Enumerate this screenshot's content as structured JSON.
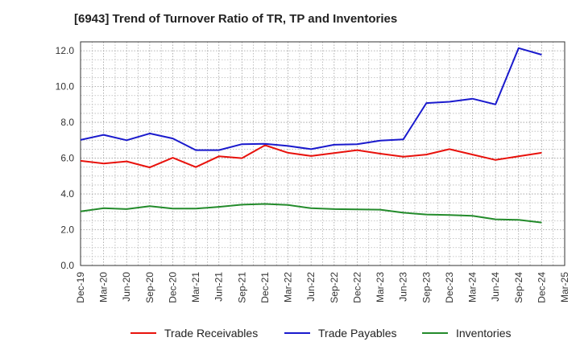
{
  "chart_data": {
    "type": "line",
    "title": "[6943]  Trend of Turnover Ratio of TR, TP and Inventories",
    "xlabel": "",
    "ylabel": "",
    "ylim": [
      0,
      12.5
    ],
    "yticks": [
      "0.0",
      "2.0",
      "4.0",
      "6.0",
      "8.0",
      "10.0",
      "12.0"
    ],
    "grid": true,
    "legend_position": "bottom",
    "x": [
      "Dec-19",
      "Mar-20",
      "Jun-20",
      "Sep-20",
      "Dec-20",
      "Mar-21",
      "Jun-21",
      "Sep-21",
      "Dec-21",
      "Mar-22",
      "Jun-22",
      "Sep-22",
      "Dec-22",
      "Mar-23",
      "Jun-23",
      "Sep-23",
      "Dec-23",
      "Mar-24",
      "Jun-24",
      "Sep-24",
      "Dec-24",
      "Mar-25"
    ],
    "series": [
      {
        "name": "Trade Receivables",
        "color": "#e8120c",
        "values": [
          5.85,
          5.7,
          5.82,
          5.48,
          6.02,
          5.5,
          6.1,
          6.0,
          6.72,
          6.3,
          6.12,
          6.28,
          6.45,
          6.25,
          6.08,
          6.2,
          6.5,
          6.2,
          5.9,
          6.1,
          6.3,
          null
        ]
      },
      {
        "name": "Trade Payables",
        "color": "#1a1acd",
        "values": [
          7.02,
          7.3,
          7.0,
          7.38,
          7.1,
          6.45,
          6.45,
          6.78,
          6.8,
          6.68,
          6.5,
          6.75,
          6.78,
          6.98,
          7.05,
          9.08,
          9.15,
          9.32,
          9.0,
          12.15,
          11.78,
          null
        ]
      },
      {
        "name": "Inventories",
        "color": "#238b2b",
        "values": [
          3.02,
          3.2,
          3.15,
          3.32,
          3.18,
          3.18,
          3.28,
          3.4,
          3.44,
          3.38,
          3.2,
          3.15,
          3.14,
          3.12,
          2.95,
          2.85,
          2.82,
          2.78,
          2.58,
          2.55,
          2.4,
          null
        ]
      }
    ]
  }
}
